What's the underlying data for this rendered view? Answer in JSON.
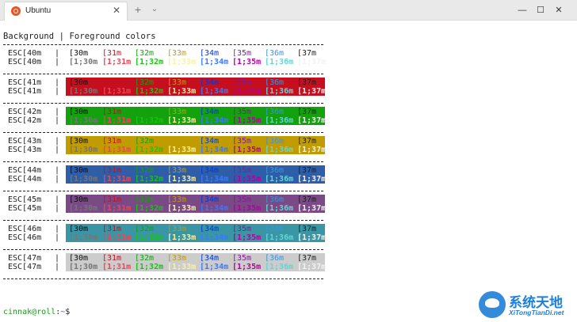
{
  "tab": {
    "title": "Ubuntu",
    "close_label": "✕"
  },
  "titlebar": {
    "new_tab_label": "+",
    "dropdown_label": "⌄",
    "minimize_label": "—",
    "maximize_label": "☐",
    "close_label": "✕"
  },
  "terminal": {
    "header": "Background | Foreground colors",
    "rows": [
      {
        "bg_code": "ESC[40m",
        "bg_color": "#ffffff",
        "line1": [
          "[30m",
          "[31m",
          "[32m",
          "[33m",
          "[34m",
          "[35m",
          "[36m",
          "[37m"
        ],
        "line2": [
          "[1;30m",
          "[1;31m",
          "[1;32m",
          "[1;33m",
          "[1;34m",
          "[1;35m",
          "[1;36m",
          "[1;37m"
        ]
      },
      {
        "bg_code": "ESC[41m",
        "bg_color": "#c50f1f",
        "line1": [
          "[30m",
          "[31m",
          "[32m",
          "[33m",
          "[34m",
          "[35m",
          "[36m",
          "[37m"
        ],
        "line2": [
          "[1;30m",
          "[1;31m",
          "[1;32m",
          "[1;33m",
          "[1;34m",
          "[1;35m",
          "[1;36m",
          "[1;37m"
        ]
      },
      {
        "bg_code": "ESC[42m",
        "bg_color": "#13a10e",
        "line1": [
          "[30m",
          "[31m",
          "[32m",
          "[33m",
          "[34m",
          "[35m",
          "[36m",
          "[37m"
        ],
        "line2": [
          "[1;30m",
          "[1;31m",
          "[1;32m",
          "[1;33m",
          "[1;34m",
          "[1;35m",
          "[1;36m",
          "[1;37m"
        ]
      },
      {
        "bg_code": "ESC[43m",
        "bg_color": "#c19c00",
        "line1": [
          "[30m",
          "[31m",
          "[32m",
          "[33m",
          "[34m",
          "[35m",
          "[36m",
          "[37m"
        ],
        "line2": [
          "[1;30m",
          "[1;31m",
          "[1;32m",
          "[1;33m",
          "[1;34m",
          "[1;35m",
          "[1;36m",
          "[1;37m"
        ]
      },
      {
        "bg_code": "ESC[44m",
        "bg_color": "#2e5ea8",
        "line1": [
          "[30m",
          "[31m",
          "[32m",
          "[33m",
          "[34m",
          "[35m",
          "[36m",
          "[37m"
        ],
        "line2": [
          "[1;30m",
          "[1;31m",
          "[1;32m",
          "[1;33m",
          "[1;34m",
          "[1;35m",
          "[1;36m",
          "[1;37m"
        ]
      },
      {
        "bg_code": "ESC[45m",
        "bg_color": "#7a4a87",
        "line1": [
          "[30m",
          "[31m",
          "[32m",
          "[33m",
          "[34m",
          "[35m",
          "[36m",
          "[37m"
        ],
        "line2": [
          "[1;30m",
          "[1;31m",
          "[1;32m",
          "[1;33m",
          "[1;34m",
          "[1;35m",
          "[1;36m",
          "[1;37m"
        ]
      },
      {
        "bg_code": "ESC[46m",
        "bg_color": "#3a96a4",
        "line1": [
          "[30m",
          "[31m",
          "[32m",
          "[33m",
          "[34m",
          "[35m",
          "[36m",
          "[37m"
        ],
        "line2": [
          "[1;30m",
          "[1;31m",
          "[1;32m",
          "[1;33m",
          "[1;34m",
          "[1;35m",
          "[1;36m",
          "[1;37m"
        ]
      },
      {
        "bg_code": "ESC[47m",
        "bg_color": "#cccccc",
        "line1": [
          "[30m",
          "[31m",
          "[32m",
          "[33m",
          "[34m",
          "[35m",
          "[36m",
          "[37m"
        ],
        "line2": [
          "[1;30m",
          "[1;31m",
          "[1;32m",
          "[1;33m",
          "[1;34m",
          "[1;35m",
          "[1;36m",
          "[1;37m"
        ]
      }
    ],
    "fg_colors_normal": [
      "#0c0c0c",
      "#c50f1f",
      "#13a10e",
      "#c19c00",
      "#0037da",
      "#881798",
      "#3a96dd",
      "#1e1e1e"
    ],
    "fg_colors_bright": [
      "#767676",
      "#e74856",
      "#16c60c",
      "#f9f1a5",
      "#3b78ff",
      "#b4009e",
      "#61d6d6",
      "#f2f2f2"
    ],
    "prompt": {
      "user": "cinnak@roll",
      "path": "~",
      "symbol": "$"
    }
  },
  "watermark": {
    "title": "系统天地",
    "subtitle": "XiTongTianDi.net"
  }
}
